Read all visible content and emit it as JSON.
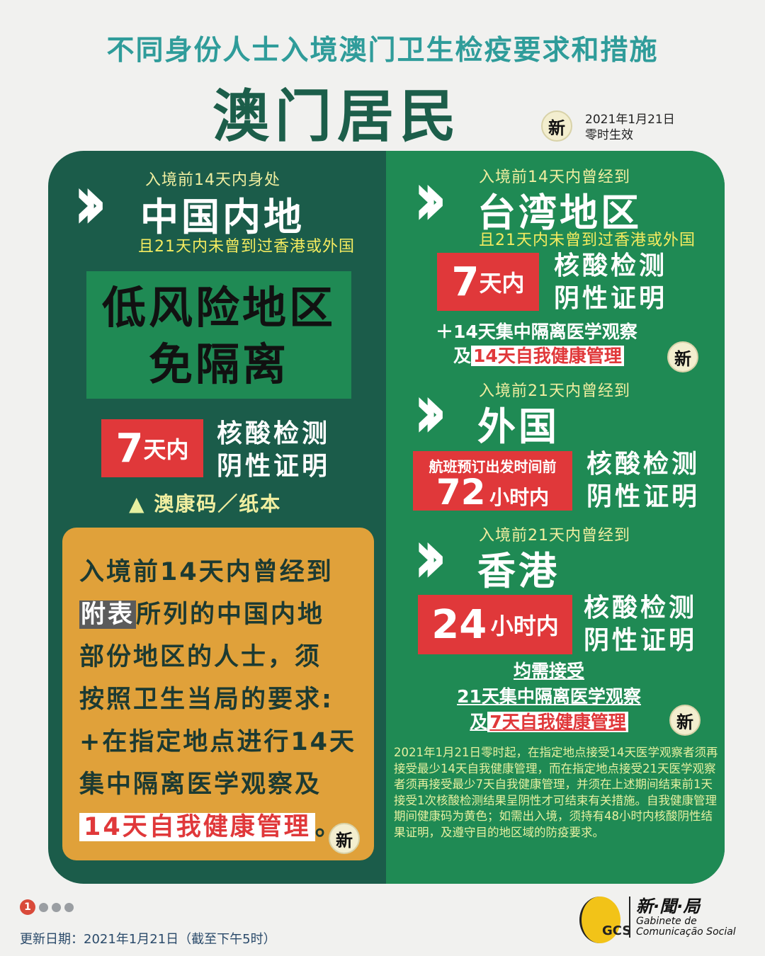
{
  "header": {
    "title": "不同身份人士入境澳门卫生检疫要求和措施",
    "subtitle": "澳门居民",
    "new_badge": "新",
    "effective_date": "2021年1月21日",
    "effective_time": "零时生效"
  },
  "left": {
    "mainland": {
      "prefix": "入境前14天内身处",
      "region": "中国内地",
      "condition": "且21天内未曾到过香港或外国"
    },
    "low_risk": {
      "line1": "低风险地区",
      "line2": "免隔离"
    },
    "test": {
      "days_num": "7",
      "days_unit": "天内",
      "line1": "核酸检测",
      "line2": "阴性证明"
    },
    "code": {
      "marker": "▲",
      "text": "澳康码／纸本"
    },
    "listed_areas": {
      "line1": "入境前14天内曾经到",
      "highlight": "附表",
      "line2_rest": "所列的中国内地",
      "line3": "部份地区的人士，须",
      "line4": "按照卫生当局的要求:",
      "line5": "+在指定地点进行14天",
      "line6": "集中隔离医学观察及",
      "line7_highlight": "14天自我健康管理",
      "line7_end": "。",
      "new_badge": "新"
    }
  },
  "right": {
    "taiwan": {
      "prefix": "入境前14天内曾经到",
      "region": "台湾地区",
      "condition": "且21天内未曾到过香港或外国",
      "test_num": "7",
      "test_unit": "天内",
      "test_line1": "核酸检测",
      "test_line2": "阴性证明",
      "extra1": "＋14天集中隔离医学观察",
      "extra2_prefix": "及",
      "extra2_highlight": "14天自我健康管理",
      "new_badge": "新"
    },
    "foreign": {
      "prefix": "入境前21天内曾经到",
      "region": "外国",
      "test_top": "航班预订出发时间前",
      "test_num": "72",
      "test_unit": "小时内",
      "test_line1": "核酸检测",
      "test_line2": "阴性证明"
    },
    "hongkong": {
      "prefix": "入境前21天内曾经到",
      "region": "香港",
      "test_num": "24",
      "test_unit": "小时内",
      "test_line1": "核酸检测",
      "test_line2": "阴性证明",
      "req1": "均需接受",
      "req2": "21天集中隔离医学观察",
      "req3_prefix": "及",
      "req3_highlight": "7天自我健康管理",
      "new_badge": "新"
    },
    "notes": "2021年1月21日零时起，在指定地点接受14天医学观察者须再接受最少14天自我健康管理，而在指定地点接受21天医学观察者须再接受最少7天自我健康管理，并须在上述期间结束前1天接受1次核酸检测结果呈阴性才可结束有关措施。自我健康管理期间健康码为黄色；如需出入境，须持有48小时内核酸阴性结果证明，及遵守目的地区域的防疫要求。"
  },
  "footer": {
    "page_current": "1",
    "page_total": 4,
    "update": "更新日期：2021年1月21日（截至下午5时）",
    "logo_cn": "新·聞·局",
    "logo_pt1": "Gabinete de",
    "logo_pt2": "Comunicação Social",
    "logo_mark": "GCS"
  },
  "colors": {
    "dark_green": "#1b5c4a",
    "green": "#1f8a54",
    "red": "#e0383a",
    "tan": "#e0a13a",
    "teal": "#2f9c9a"
  }
}
